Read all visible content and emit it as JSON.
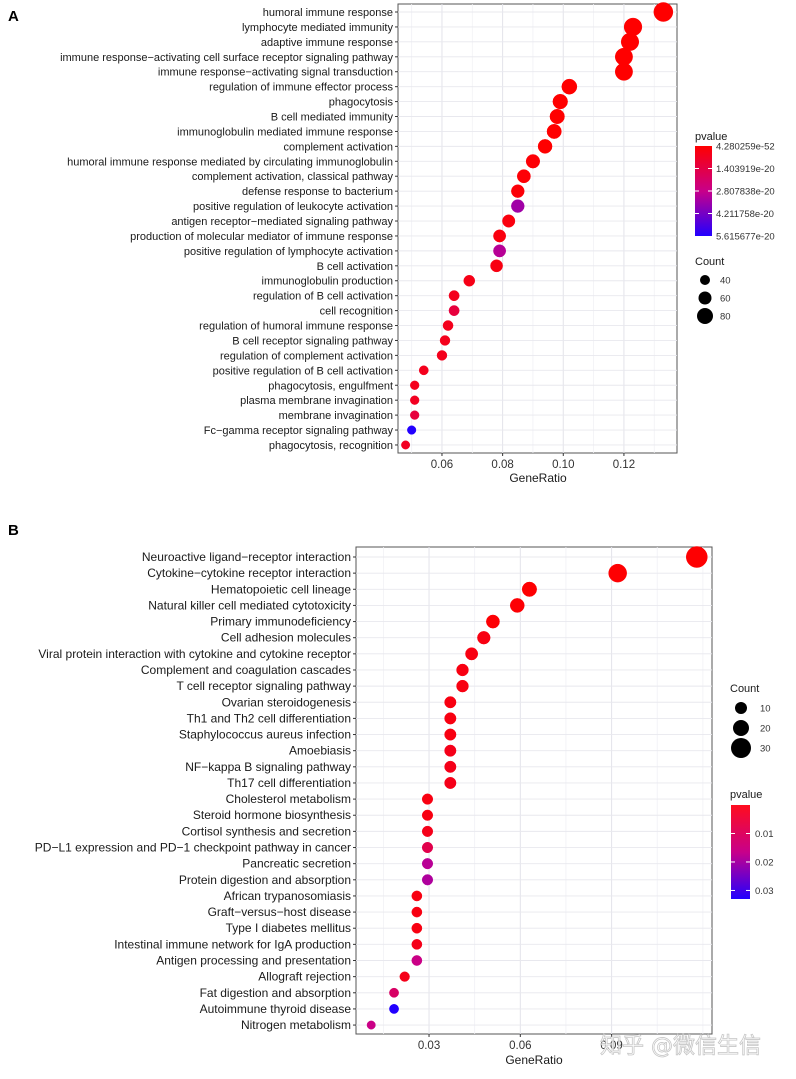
{
  "watermark": "知乎 @微信生信",
  "chart_data": [
    {
      "panel": "A",
      "type": "scatter",
      "subtype": "dot-plot",
      "xlabel": "GeneRatio",
      "ylabel": "",
      "xticks": [
        0.06,
        0.08,
        0.1,
        0.12
      ],
      "xtick_labels": [
        "0.06",
        "0.08",
        "0.10",
        "0.12"
      ],
      "xlim": [
        0.0455,
        0.1375
      ],
      "grid": true,
      "color_legend": {
        "title": "pvalue",
        "labels": [
          "4.280259e-52",
          "1.403919e-20",
          "2.807838e-20",
          "4.211758e-20",
          "5.615677e-20"
        ],
        "low_color": "#ff0000",
        "high_color": "#0000ff",
        "placement": "right-top"
      },
      "size_legend": {
        "title": "Count",
        "labels": [
          "40",
          "60",
          "80"
        ],
        "values": [
          40,
          60,
          80
        ],
        "placement": "right-middle"
      },
      "terms": [
        {
          "term": "humoral immune response",
          "gene_ratio": 0.133,
          "count": 89,
          "pvalue_level": 0.0
        },
        {
          "term": "lymphocyte mediated immunity",
          "gene_ratio": 0.123,
          "count": 82,
          "pvalue_level": 0.0
        },
        {
          "term": "adaptive immune response",
          "gene_ratio": 0.122,
          "count": 81,
          "pvalue_level": 0.0
        },
        {
          "term": "immune response−activating cell surface receptor signaling pathway",
          "gene_ratio": 0.12,
          "count": 80,
          "pvalue_level": 0.0
        },
        {
          "term": "immune response−activating signal transduction",
          "gene_ratio": 0.12,
          "count": 80,
          "pvalue_level": 0.0
        },
        {
          "term": "regulation of immune effector process",
          "gene_ratio": 0.102,
          "count": 68,
          "pvalue_level": 0.0
        },
        {
          "term": "phagocytosis",
          "gene_ratio": 0.099,
          "count": 66,
          "pvalue_level": 0.0
        },
        {
          "term": "B cell mediated immunity",
          "gene_ratio": 0.098,
          "count": 65,
          "pvalue_level": 0.0
        },
        {
          "term": "immunoglobulin mediated immune response",
          "gene_ratio": 0.097,
          "count": 64,
          "pvalue_level": 0.0
        },
        {
          "term": "complement activation",
          "gene_ratio": 0.094,
          "count": 62,
          "pvalue_level": 0.0
        },
        {
          "term": "humoral immune response mediated by circulating immunoglobulin",
          "gene_ratio": 0.09,
          "count": 60,
          "pvalue_level": 0.02
        },
        {
          "term": "complement activation, classical pathway",
          "gene_ratio": 0.087,
          "count": 58,
          "pvalue_level": 0.02
        },
        {
          "term": "defense response to bacterium",
          "gene_ratio": 0.085,
          "count": 56,
          "pvalue_level": 0.03
        },
        {
          "term": "positive regulation of leukocyte activation",
          "gene_ratio": 0.085,
          "count": 56,
          "pvalue_level": 0.62
        },
        {
          "term": "antigen receptor−mediated signaling pathway",
          "gene_ratio": 0.082,
          "count": 54,
          "pvalue_level": 0.05
        },
        {
          "term": "production of molecular mediator of immune response",
          "gene_ratio": 0.079,
          "count": 53,
          "pvalue_level": 0.05
        },
        {
          "term": "positive regulation of lymphocyte activation",
          "gene_ratio": 0.079,
          "count": 53,
          "pvalue_level": 0.55
        },
        {
          "term": "B cell activation",
          "gene_ratio": 0.078,
          "count": 52,
          "pvalue_level": 0.06
        },
        {
          "term": "immunoglobulin production",
          "gene_ratio": 0.069,
          "count": 46,
          "pvalue_level": 0.08
        },
        {
          "term": "regulation of B cell activation",
          "gene_ratio": 0.064,
          "count": 42,
          "pvalue_level": 0.1
        },
        {
          "term": "cell recognition",
          "gene_ratio": 0.064,
          "count": 42,
          "pvalue_level": 0.22
        },
        {
          "term": "regulation of humoral immune response",
          "gene_ratio": 0.062,
          "count": 41,
          "pvalue_level": 0.1
        },
        {
          "term": "B cell receptor signaling pathway",
          "gene_ratio": 0.061,
          "count": 40,
          "pvalue_level": 0.1
        },
        {
          "term": "regulation of complement activation",
          "gene_ratio": 0.06,
          "count": 40,
          "pvalue_level": 0.1
        },
        {
          "term": "positive regulation of B cell activation",
          "gene_ratio": 0.054,
          "count": 36,
          "pvalue_level": 0.1
        },
        {
          "term": "phagocytosis, engulfment",
          "gene_ratio": 0.051,
          "count": 34,
          "pvalue_level": 0.1
        },
        {
          "term": "plasma membrane invagination",
          "gene_ratio": 0.051,
          "count": 34,
          "pvalue_level": 0.12
        },
        {
          "term": "membrane invagination",
          "gene_ratio": 0.051,
          "count": 34,
          "pvalue_level": 0.22
        },
        {
          "term": "Fc−gamma receptor signaling pathway",
          "gene_ratio": 0.05,
          "count": 33,
          "pvalue_level": 1.0
        },
        {
          "term": "phagocytosis, recognition",
          "gene_ratio": 0.048,
          "count": 32,
          "pvalue_level": 0.12
        }
      ]
    },
    {
      "panel": "B",
      "type": "scatter",
      "subtype": "dot-plot",
      "xlabel": "GeneRatio",
      "ylabel": "",
      "xticks": [
        0.03,
        0.06,
        0.09
      ],
      "xtick_labels": [
        "0.03",
        "0.06",
        "0.09"
      ],
      "xlim": [
        0.006,
        0.123
      ],
      "grid": true,
      "size_legend": {
        "title": "Count",
        "labels": [
          "10",
          "20",
          "30"
        ],
        "values": [
          10,
          20,
          30
        ],
        "placement": "right-top"
      },
      "color_legend": {
        "title": "pvalue",
        "labels": [
          "0.01",
          "0.02",
          "0.03"
        ],
        "values": [
          0.01,
          0.02,
          0.03
        ],
        "range": [
          0,
          0.033
        ],
        "low_color": "#ff0000",
        "high_color": "#0000ff",
        "placement": "right-middle"
      },
      "terms": [
        {
          "term": "Neuroactive ligand−receptor interaction",
          "gene_ratio": 0.118,
          "count": 32,
          "pvalue": 0.0002
        },
        {
          "term": "Cytokine−cytokine receptor interaction",
          "gene_ratio": 0.092,
          "count": 25,
          "pvalue": 0.0002
        },
        {
          "term": "Hematopoietic cell lineage",
          "gene_ratio": 0.063,
          "count": 17,
          "pvalue": 0.0002
        },
        {
          "term": "Natural killer cell mediated cytotoxicity",
          "gene_ratio": 0.059,
          "count": 16,
          "pvalue": 0.0005
        },
        {
          "term": "Primary immunodeficiency",
          "gene_ratio": 0.051,
          "count": 14,
          "pvalue": 0.0005
        },
        {
          "term": "Cell adhesion molecules",
          "gene_ratio": 0.048,
          "count": 13,
          "pvalue": 0.002
        },
        {
          "term": "Viral protein interaction with cytokine and cytokine receptor",
          "gene_ratio": 0.044,
          "count": 12,
          "pvalue": 0.002
        },
        {
          "term": "Complement and coagulation cascades",
          "gene_ratio": 0.041,
          "count": 11,
          "pvalue": 0.002
        },
        {
          "term": "T cell receptor signaling pathway",
          "gene_ratio": 0.041,
          "count": 11,
          "pvalue": 0.002
        },
        {
          "term": "Ovarian steroidogenesis",
          "gene_ratio": 0.037,
          "count": 10,
          "pvalue": 0.002
        },
        {
          "term": "Th1 and Th2 cell differentiation",
          "gene_ratio": 0.037,
          "count": 10,
          "pvalue": 0.002
        },
        {
          "term": "Staphylococcus aureus infection",
          "gene_ratio": 0.037,
          "count": 10,
          "pvalue": 0.002
        },
        {
          "term": "Amoebiasis",
          "gene_ratio": 0.037,
          "count": 10,
          "pvalue": 0.003
        },
        {
          "term": "NF−kappa B signaling pathway",
          "gene_ratio": 0.037,
          "count": 10,
          "pvalue": 0.003
        },
        {
          "term": "Th17 cell differentiation",
          "gene_ratio": 0.037,
          "count": 10,
          "pvalue": 0.003
        },
        {
          "term": "Cholesterol metabolism",
          "gene_ratio": 0.0295,
          "count": 8,
          "pvalue": 0.002
        },
        {
          "term": "Steroid hormone biosynthesis",
          "gene_ratio": 0.0295,
          "count": 8,
          "pvalue": 0.002
        },
        {
          "term": "Cortisol synthesis and secretion",
          "gene_ratio": 0.0295,
          "count": 8,
          "pvalue": 0.003
        },
        {
          "term": "PD−L1 expression and PD−1 checkpoint pathway in cancer",
          "gene_ratio": 0.0295,
          "count": 8,
          "pvalue": 0.009
        },
        {
          "term": "Pancreatic secretion",
          "gene_ratio": 0.0295,
          "count": 8,
          "pvalue": 0.018
        },
        {
          "term": "Protein digestion and absorption",
          "gene_ratio": 0.0295,
          "count": 8,
          "pvalue": 0.019
        },
        {
          "term": "African trypanosomiasis",
          "gene_ratio": 0.026,
          "count": 7,
          "pvalue": 0.002
        },
        {
          "term": "Graft−versus−host disease",
          "gene_ratio": 0.026,
          "count": 7,
          "pvalue": 0.002
        },
        {
          "term": "Type I diabetes mellitus",
          "gene_ratio": 0.026,
          "count": 7,
          "pvalue": 0.002
        },
        {
          "term": "Intestinal immune network for IgA production",
          "gene_ratio": 0.026,
          "count": 7,
          "pvalue": 0.003
        },
        {
          "term": "Antigen processing and presentation",
          "gene_ratio": 0.026,
          "count": 7,
          "pvalue": 0.016
        },
        {
          "term": "Allograft rejection",
          "gene_ratio": 0.022,
          "count": 6,
          "pvalue": 0.003
        },
        {
          "term": "Fat digestion and absorption",
          "gene_ratio": 0.0185,
          "count": 5,
          "pvalue": 0.012
        },
        {
          "term": "Autoimmune thyroid disease",
          "gene_ratio": 0.0185,
          "count": 5,
          "pvalue": 0.033
        },
        {
          "term": "Nitrogen metabolism",
          "gene_ratio": 0.011,
          "count": 3,
          "pvalue": 0.016
        }
      ]
    }
  ],
  "panels": {
    "A": {
      "label": "A"
    },
    "B": {
      "label": "B"
    }
  }
}
